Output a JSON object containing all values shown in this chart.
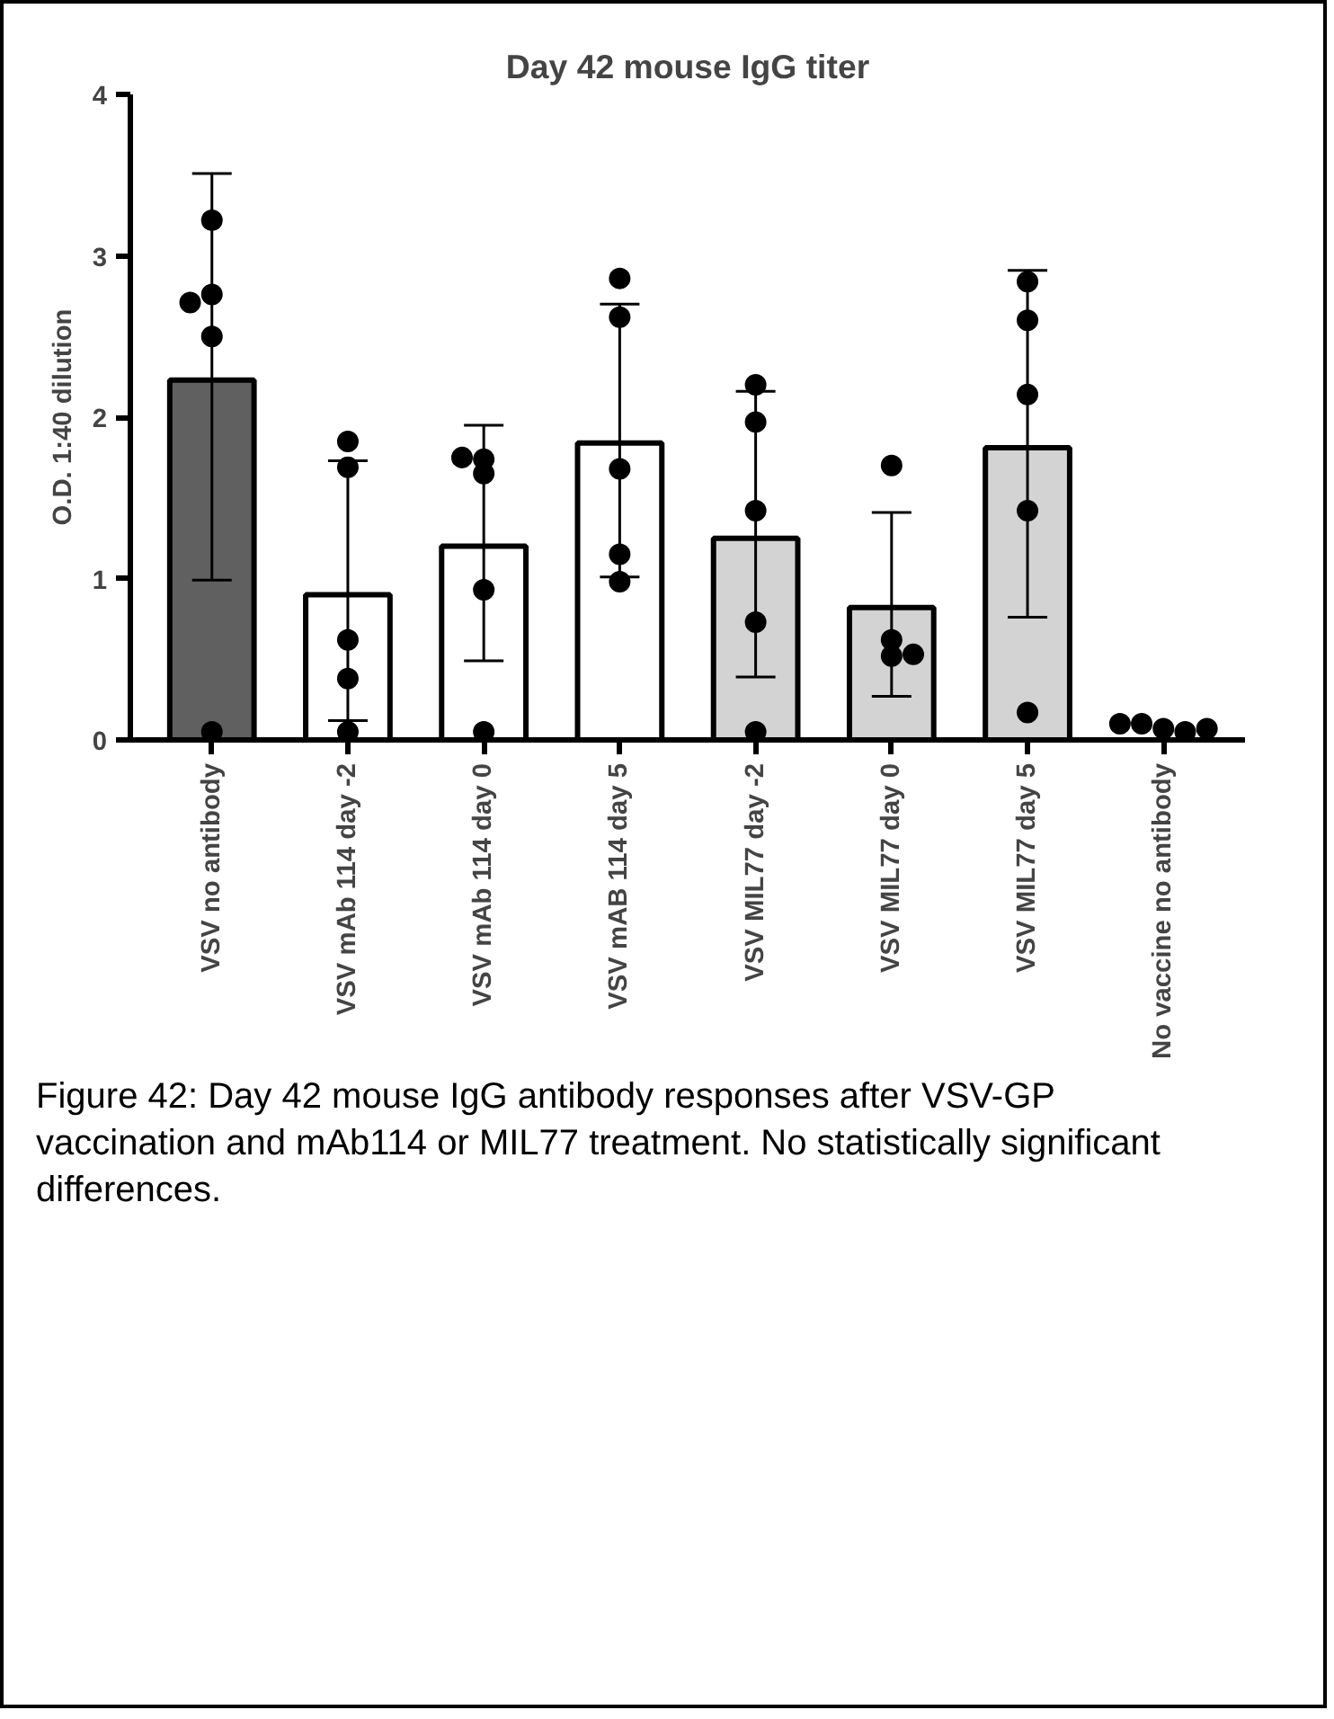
{
  "chart_data": {
    "type": "bar",
    "title": "Day 42 mouse IgG titer",
    "ylabel": "O.D. 1:40 dilution",
    "categories": [
      "VSV no antibody",
      "VSV mAb 114 day -2",
      "VSV mAb 114 day 0",
      "VSV mAB 114 day 5",
      "VSV MIL77 day -2",
      "VSV MIL77 day 0",
      "VSV MIL77 day 5",
      "No vaccine no antibody"
    ],
    "series": [
      {
        "values": [
          2.23,
          0.9,
          1.2,
          1.84,
          1.25,
          0.82,
          1.81,
          null
        ],
        "colors": [
          "#606060",
          "#ffffff",
          "#ffffff",
          "#ffffff",
          "#d3d3d3",
          "#d3d3d3",
          "#d3d3d3",
          "#ffffff"
        ],
        "errors": [
          [
            0.99,
            3.51
          ],
          [
            0.12,
            1.73
          ],
          [
            0.49,
            1.95
          ],
          [
            1.01,
            2.7
          ],
          [
            0.39,
            2.16
          ],
          [
            0.27,
            1.41
          ],
          [
            0.76,
            2.91
          ],
          null
        ]
      },
      {
        "type": "scatter",
        "color": "#000000",
        "x": [
          "VSV no antibody",
          "VSV no antibody",
          "VSV no antibody",
          "VSV no antibody",
          "VSV no antibody",
          "VSV mAb 114 day -2",
          "VSV mAb 114 day -2",
          "VSV mAb 114 day -2",
          "VSV mAb 114 day -2",
          "VSV mAb 114 day -2",
          "VSV mAb 114 day 0",
          "VSV mAb 114 day 0",
          "VSV mAb 114 day 0",
          "VSV mAb 114 day 0",
          "VSV mAb 114 day 0",
          "VSV mAB 114 day 5",
          "VSV mAB 114 day 5",
          "VSV mAB 114 day 5",
          "VSV mAB 114 day 5",
          "VSV mAB 114 day 5",
          "VSV MIL77 day -2",
          "VSV MIL77 day -2",
          "VSV MIL77 day -2",
          "VSV MIL77 day -2",
          "VSV MIL77 day -2",
          "VSV MIL77 day 0",
          "VSV MIL77 day 0",
          "VSV MIL77 day 0",
          "VSV MIL77 day 0",
          "VSV MIL77 day 5",
          "VSV MIL77 day 5",
          "VSV MIL77 day 5",
          "VSV MIL77 day 5",
          "VSV MIL77 day 5",
          "No vaccine no antibody",
          "No vaccine no antibody",
          "No vaccine no antibody",
          "No vaccine no antibody",
          "No vaccine no antibody"
        ],
        "values": [
          3.22,
          2.76,
          2.71,
          2.5,
          0.05,
          1.85,
          1.69,
          0.62,
          0.38,
          0.05,
          1.74,
          1.65,
          1.75,
          0.93,
          0.05,
          2.86,
          2.62,
          1.68,
          1.15,
          0.98,
          2.2,
          1.97,
          1.42,
          0.73,
          0.05,
          1.7,
          0.62,
          0.52,
          0.53,
          2.84,
          2.6,
          2.14,
          1.42,
          0.17,
          0.07,
          0.1,
          0.05,
          0.1,
          0.07
        ]
      }
    ],
    "ylim": [
      0,
      4
    ],
    "yticks": [
      0,
      1,
      2,
      3,
      4
    ],
    "grid": false,
    "marker": "circle",
    "annotations": [
      "Figure 42:  Day 42 mouse IgG antibody responses after VSV-GP vaccination and mAb114 or MIL77 treatment. No statistically significant differences."
    ]
  }
}
